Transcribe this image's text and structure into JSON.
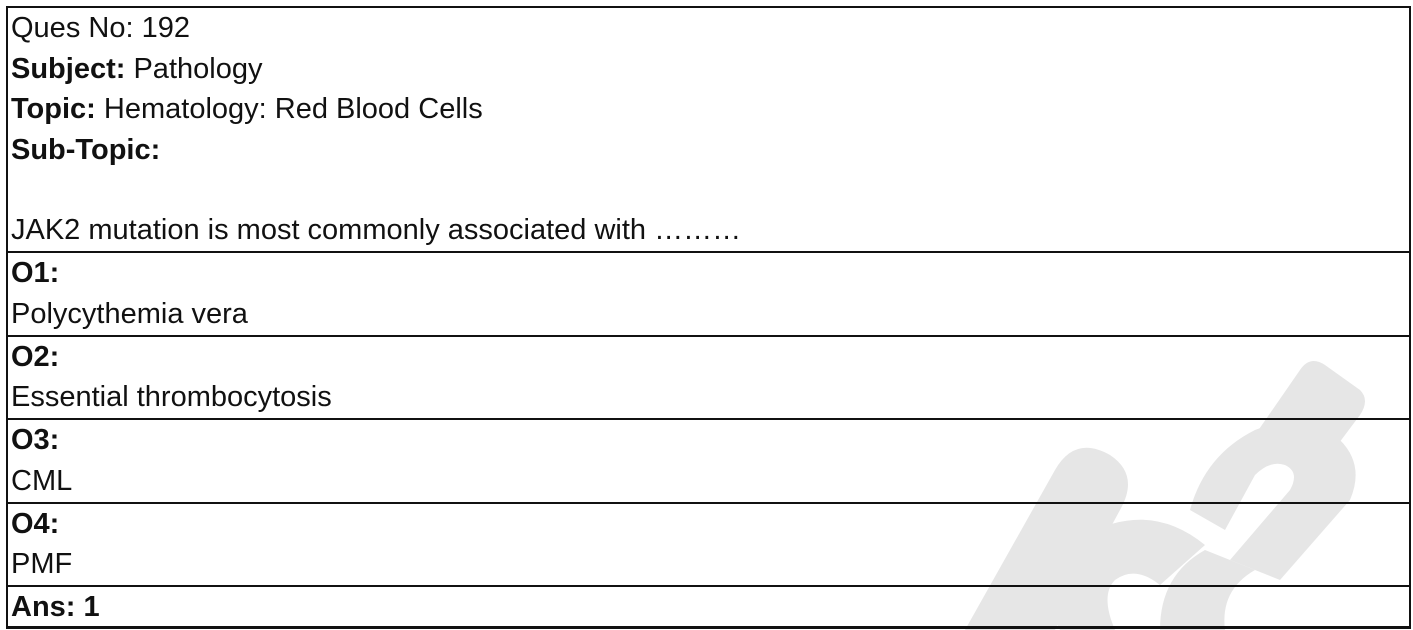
{
  "question": {
    "ques_no_label": "Ques No:",
    "ques_no": "192",
    "subject_label": "Subject:",
    "subject": "Pathology",
    "topic_label": "Topic:",
    "topic": "Hematology: Red Blood Cells",
    "subtopic_label": "Sub-Topic:",
    "subtopic": "",
    "stem": "JAK2 mutation is most commonly associated with ………"
  },
  "options": [
    {
      "label": "O1:",
      "text": "Polycythemia vera"
    },
    {
      "label": "O2:",
      "text": "Essential thrombocytosis"
    },
    {
      "label": "O3:",
      "text": "CML"
    },
    {
      "label": "O4:",
      "text": "PMF"
    }
  ],
  "answer": {
    "text": "Ans: 1"
  },
  "watermark": {
    "color": "#e6e6e6"
  }
}
